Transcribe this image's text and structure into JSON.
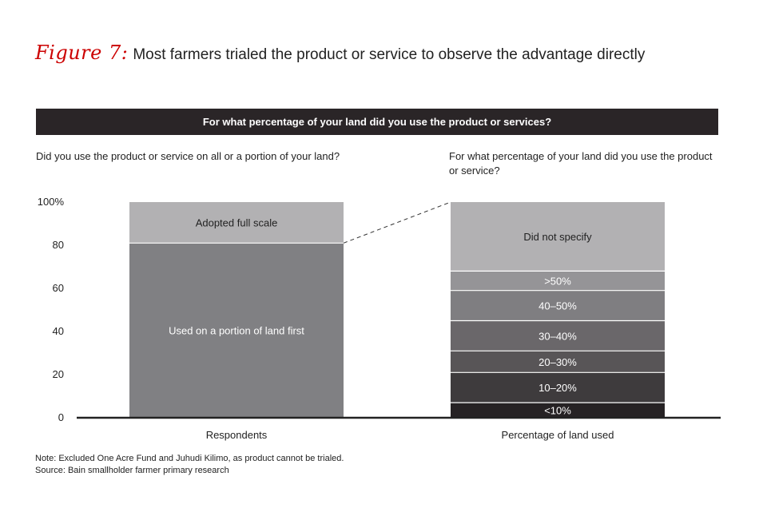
{
  "figure": {
    "label": "Figure 7:",
    "title": "Most farmers trialed the product or service to observe the advantage directly"
  },
  "banner": "For what percentage of your land did you use the product or services?",
  "left_question": "Did you use the product or service on all or a portion of your land?",
  "right_question": "For what percentage of your land did you use the product or service?",
  "note": "Note: Excluded One Acre Fund and Juhudi Kilimo, as product cannot be trialed.",
  "source": "Source: Bain smallholder farmer primary research",
  "chart_data": {
    "type": "bar",
    "stacked": true,
    "ylim": [
      0,
      100
    ],
    "yticks": [
      "0",
      "20",
      "40",
      "60",
      "80",
      "100%"
    ],
    "ytick_values": [
      0,
      20,
      40,
      60,
      80,
      100
    ],
    "categories": [
      "Respondents",
      "Percentage of land used"
    ],
    "bars": [
      {
        "category": "Respondents",
        "segments": [
          {
            "label": "Used on a portion of land first",
            "value": 81,
            "color": "#808083",
            "text_color": "#ffffff"
          },
          {
            "label": "Adopted full scale",
            "value": 19,
            "color": "#b2b1b3",
            "text_color": "#222222"
          }
        ]
      },
      {
        "category": "Percentage of land used",
        "segments": [
          {
            "label": "<10%",
            "value": 7,
            "color": "#262224",
            "text_color": "#ffffff"
          },
          {
            "label": "10–20%",
            "value": 14,
            "color": "#3e3b3d",
            "text_color": "#ffffff"
          },
          {
            "label": "20–30%",
            "value": 10,
            "color": "#585557",
            "text_color": "#ffffff"
          },
          {
            "label": "30–40%",
            "value": 14,
            "color": "#6a676a",
            "text_color": "#ffffff"
          },
          {
            "label": "40–50%",
            "value": 14,
            "color": "#7f7e81",
            "text_color": "#ffffff"
          },
          {
            "label": ">50%",
            "value": 9,
            "color": "#959497",
            "text_color": "#ffffff"
          },
          {
            "label": "Did not specify",
            "value": 32,
            "color": "#b2b1b3",
            "text_color": "#222222"
          }
        ]
      }
    ],
    "connector": "dashed line from top of 'Used on a portion of land first' segment to top of second bar",
    "grid": false,
    "legend": "none"
  }
}
